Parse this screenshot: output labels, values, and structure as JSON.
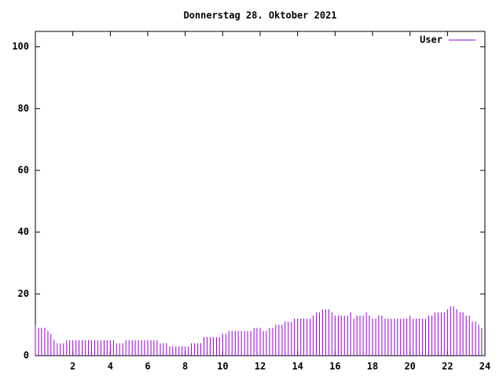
{
  "chart_data": {
    "type": "impulses",
    "title": "Donnerstag 28. Oktober 2021",
    "x": [
      0,
      0.17,
      0.33,
      0.5,
      0.67,
      0.83,
      1,
      1.17,
      1.33,
      1.5,
      1.67,
      1.83,
      2,
      2.17,
      2.33,
      2.5,
      2.67,
      2.83,
      3,
      3.17,
      3.33,
      3.5,
      3.67,
      3.83,
      4,
      4.17,
      4.33,
      4.5,
      4.67,
      4.83,
      5,
      5.17,
      5.33,
      5.5,
      5.67,
      5.83,
      6,
      6.17,
      6.33,
      6.5,
      6.67,
      6.83,
      7,
      7.17,
      7.33,
      7.5,
      7.67,
      7.83,
      8,
      8.17,
      8.33,
      8.5,
      8.67,
      8.83,
      9,
      9.17,
      9.33,
      9.5,
      9.67,
      9.83,
      10,
      10.17,
      10.33,
      10.5,
      10.67,
      10.83,
      11,
      11.17,
      11.33,
      11.5,
      11.67,
      11.83,
      12,
      12.17,
      12.33,
      12.5,
      12.67,
      12.83,
      13,
      13.17,
      13.33,
      13.5,
      13.67,
      13.83,
      14,
      14.17,
      14.33,
      14.5,
      14.67,
      14.83,
      15,
      15.17,
      15.33,
      15.5,
      15.67,
      15.83,
      16,
      16.17,
      16.33,
      16.5,
      16.67,
      16.83,
      17,
      17.17,
      17.33,
      17.5,
      17.67,
      17.83,
      18,
      18.17,
      18.33,
      18.5,
      18.67,
      18.83,
      19,
      19.17,
      19.33,
      19.5,
      19.67,
      19.83,
      20,
      20.17,
      20.33,
      20.5,
      20.67,
      20.83,
      21,
      21.17,
      21.33,
      21.5,
      21.67,
      21.83,
      22,
      22.17,
      22.33,
      22.5,
      22.67,
      22.83,
      23,
      23.17,
      23.33,
      23.5,
      23.67,
      23.83
    ],
    "series": [
      {
        "name": "User",
        "color": "#9400d3",
        "values": [
          10,
          9,
          9,
          9,
          8,
          7,
          5,
          4,
          4,
          4,
          5,
          5,
          5,
          5,
          5,
          5,
          5,
          5,
          5,
          5,
          5,
          5,
          5,
          5,
          5,
          5,
          4,
          4,
          4,
          5,
          5,
          5,
          5,
          5,
          5,
          5,
          5,
          5,
          5,
          5,
          4,
          4,
          4,
          3,
          3,
          3,
          3,
          3,
          3,
          3,
          4,
          4,
          4,
          4,
          6,
          6,
          6,
          6,
          6,
          6,
          7,
          7,
          8,
          8,
          8,
          8,
          8,
          8,
          8,
          8,
          9,
          9,
          9,
          8,
          8,
          9,
          9,
          10,
          10,
          10,
          11,
          11,
          11,
          12,
          12,
          12,
          12,
          12,
          12,
          13,
          14,
          14,
          15,
          15,
          15,
          14,
          13,
          13,
          13,
          13,
          13,
          14,
          12,
          13,
          13,
          13,
          14,
          13,
          12,
          12,
          13,
          13,
          12,
          12,
          12,
          12,
          12,
          12,
          12,
          12,
          13,
          12,
          12,
          12,
          12,
          12,
          13,
          13,
          14,
          14,
          14,
          14,
          15,
          16,
          16,
          15,
          14,
          14,
          13,
          13,
          11,
          11,
          10,
          9
        ]
      }
    ],
    "xlim": [
      0,
      24
    ],
    "xticks": [
      2,
      4,
      6,
      8,
      10,
      12,
      14,
      16,
      18,
      20,
      22,
      24
    ],
    "ylim": [
      0,
      105
    ],
    "yticks": [
      0,
      20,
      40,
      60,
      80,
      100
    ],
    "grid": false,
    "legend": "top-right"
  }
}
